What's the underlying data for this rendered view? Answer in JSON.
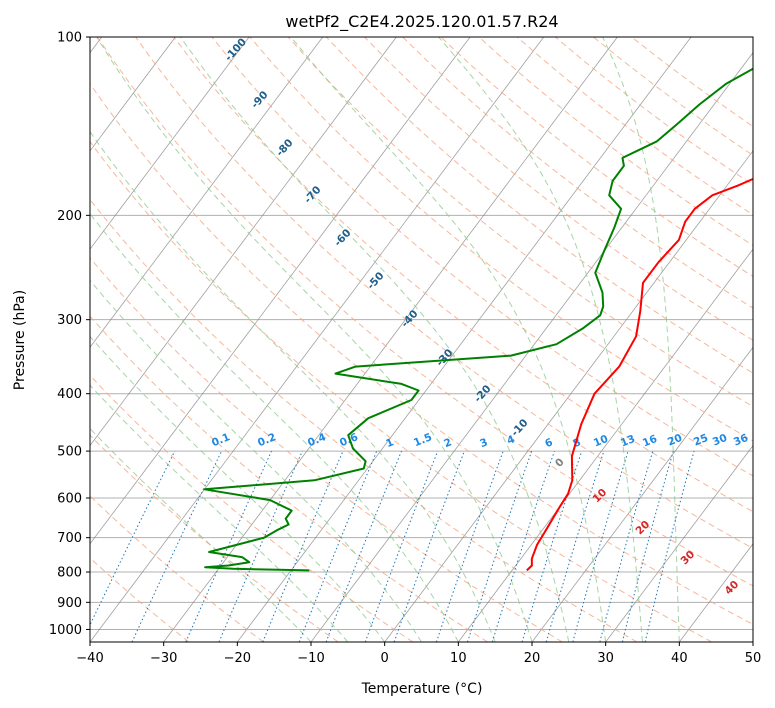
{
  "chart_data": {
    "type": "line",
    "title": "wetPf2_C2E4.2025.120.01.57.R24",
    "xlabel": "Temperature (°C)",
    "ylabel": "Pressure (hPa)",
    "xlim": [
      -40,
      50
    ],
    "ylim": [
      1050,
      100
    ],
    "y_scale": "log",
    "grid": true,
    "x_ticks": [
      -40,
      -30,
      -20,
      -10,
      0,
      10,
      20,
      30,
      40,
      50
    ],
    "x_tick_labels": [
      "−40",
      "−30",
      "−20",
      "−10",
      "0",
      "10",
      "20",
      "30",
      "40",
      "50"
    ],
    "y_ticks": [
      100,
      200,
      300,
      400,
      500,
      600,
      700,
      800,
      900,
      1000
    ],
    "y_tick_labels": [
      "100",
      "200",
      "300",
      "400",
      "500",
      "600",
      "700",
      "800",
      "900",
      "1000"
    ],
    "series": [
      {
        "color": "#ff0000",
        "points": [
          [
            12,
            795
          ],
          [
            12.2,
            780
          ],
          [
            11.5,
            760
          ],
          [
            10.8,
            720
          ],
          [
            10.5,
            680
          ],
          [
            10,
            620
          ],
          [
            9.8,
            590
          ],
          [
            9,
            560
          ],
          [
            6.5,
            510
          ],
          [
            4.5,
            450
          ],
          [
            3.2,
            400
          ],
          [
            3.8,
            360
          ],
          [
            3,
            320
          ],
          [
            1,
            290
          ],
          [
            -1.5,
            260
          ],
          [
            -1.5,
            240
          ],
          [
            -1,
            220
          ],
          [
            -2,
            205
          ],
          [
            -2,
            195
          ],
          [
            -1,
            185
          ],
          [
            1.5,
            178
          ],
          [
            4,
            170
          ],
          [
            5,
            160
          ],
          [
            5.5,
            150
          ],
          [
            7,
            140
          ],
          [
            10,
            125
          ],
          [
            12,
            115
          ],
          [
            14,
            105
          ],
          [
            15.5,
            100
          ]
        ]
      },
      {
        "color": "#008000",
        "points": [
          [
            -17.5,
            795
          ],
          [
            -28,
            790
          ],
          [
            -32,
            785
          ],
          [
            -29,
            780
          ],
          [
            -26.5,
            770
          ],
          [
            -28,
            755
          ],
          [
            -33,
            740
          ],
          [
            -30,
            720
          ],
          [
            -27,
            700
          ],
          [
            -26,
            680
          ],
          [
            -25,
            665
          ],
          [
            -26,
            650
          ],
          [
            -26,
            640
          ],
          [
            -26,
            630
          ],
          [
            -30,
            605
          ],
          [
            -40,
            580
          ],
          [
            -26,
            560
          ],
          [
            -20.5,
            535
          ],
          [
            -21,
            520
          ],
          [
            -24,
            495
          ],
          [
            -26,
            470
          ],
          [
            -25,
            440
          ],
          [
            -21,
            410
          ],
          [
            -21,
            395
          ],
          [
            -24,
            385
          ],
          [
            -34,
            370
          ],
          [
            -32,
            360
          ],
          [
            -12,
            345
          ],
          [
            -7,
            330
          ],
          [
            -5,
            310
          ],
          [
            -4,
            295
          ],
          [
            -4.5,
            285
          ],
          [
            -6,
            270
          ],
          [
            -9,
            250
          ],
          [
            -10,
            230
          ],
          [
            -11,
            210
          ],
          [
            -12,
            195
          ],
          [
            -15,
            185
          ],
          [
            -16,
            175
          ],
          [
            -16,
            165
          ],
          [
            -17,
            160
          ],
          [
            -14,
            150
          ],
          [
            -13,
            140
          ],
          [
            -12,
            130
          ],
          [
            -10.5,
            120
          ],
          [
            -8,
            112
          ],
          [
            -5,
            103
          ],
          [
            -2,
            96
          ]
        ]
      }
    ],
    "dry_adiabat_labels": [
      "-100",
      "-90",
      "-80",
      "-70",
      "-60",
      "-50",
      "-40",
      "-30",
      "-20",
      "-10"
    ],
    "moist_adiabat_labels": [
      "0",
      "10",
      "20",
      "30",
      "40"
    ],
    "mixing_ratio_labels": [
      "0.1",
      "0.2",
      "0.4",
      "0.6",
      "1",
      "1.5",
      "2",
      "3",
      "4",
      "6",
      "8",
      "10",
      "13",
      "16",
      "20",
      "25",
      "30",
      "36"
    ]
  },
  "colors": {
    "temperature": "#ff0000",
    "dewpoint": "#008000",
    "dry_adiabat": "#f4a582",
    "moist_adiabat": "#8fcb8f",
    "mixing_ratio": "#1f77b4",
    "isotherm": "#808080",
    "grid": "#b0b0b0",
    "dry_adiabat_label": "#1f5f8b",
    "moist_adiabat_label": "#d62728",
    "mixing_ratio_label": "#1e88e5"
  }
}
